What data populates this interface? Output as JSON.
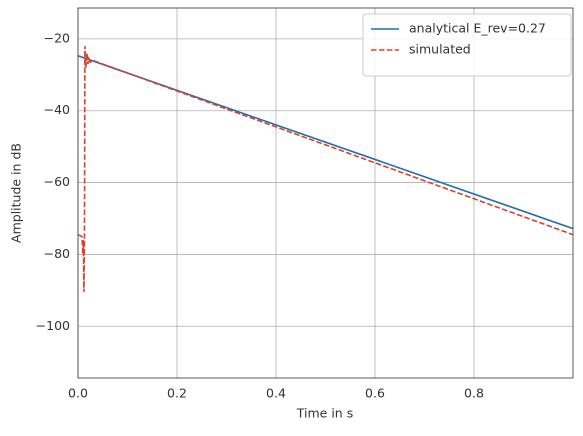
{
  "chart_data": {
    "type": "line",
    "xlabel": "Time in s",
    "ylabel": "Amplitude in dB",
    "series": [
      {
        "name": "analytical E_rev=0.27",
        "color": "#1f6eb4",
        "dash": false,
        "x": [
          0,
          1.0
        ],
        "values": [
          -24.7,
          -72.8
        ]
      },
      {
        "name": "simulated",
        "color": "#de3f26",
        "dash": true,
        "x": [
          0,
          0.008,
          0.01,
          0.011,
          0.012,
          0.013,
          0.014,
          0.016,
          0.018,
          0.02,
          0.022,
          0.025,
          0.03,
          1.0
        ],
        "values": [
          -74.5,
          -75,
          -80,
          -76,
          -90.5,
          -78,
          -22,
          -28,
          -24,
          -27,
          -25.5,
          -26.5,
          -26,
          -74.5
        ]
      }
    ],
    "xlim": [
      0,
      1.0
    ],
    "ylim": [
      -114.4,
      -11.4
    ],
    "xticks": [
      {
        "value": 0,
        "label": "0.0"
      },
      0.2,
      0.4,
      0.6,
      0.8
    ],
    "yticks": [
      {
        "value": -20,
        "label": "−20"
      },
      {
        "value": -40,
        "label": "−40"
      },
      {
        "value": -60,
        "label": "−60"
      },
      {
        "value": -80,
        "label": "−80"
      },
      {
        "value": -100,
        "label": "−100"
      }
    ],
    "grid": true,
    "legend": "upper right"
  }
}
